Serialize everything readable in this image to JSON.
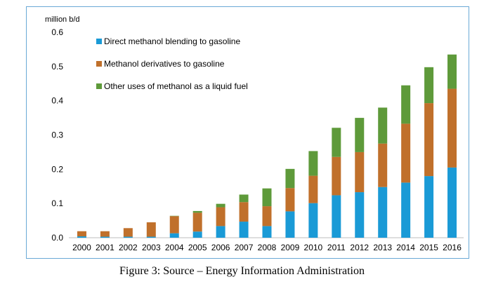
{
  "caption": "Figure 3: Source – Energy Information Administration",
  "chart_data": {
    "type": "bar",
    "stacked": true,
    "unit_label": "million b/d",
    "categories": [
      "2000",
      "2001",
      "2002",
      "2003",
      "2004",
      "2005",
      "2006",
      "2007",
      "2008",
      "2009",
      "2010",
      "2011",
      "2012",
      "2013",
      "2014",
      "2015",
      "2016"
    ],
    "ylim": [
      0,
      0.6
    ],
    "yticks": [
      "0.0",
      "0.1",
      "0.2",
      "0.3",
      "0.4",
      "0.5",
      "0.6"
    ],
    "grid": false,
    "legend_position": "top-left",
    "series": [
      {
        "name": "Direct methanol blending to gasoline",
        "color": "#1a9ad6",
        "values": [
          0.004,
          0.003,
          0.003,
          0.003,
          0.013,
          0.018,
          0.034,
          0.047,
          0.034,
          0.077,
          0.101,
          0.124,
          0.133,
          0.148,
          0.161,
          0.18,
          0.205
        ]
      },
      {
        "name": "Methanol derivatives to gasoline",
        "color": "#c0702b",
        "values": [
          0.015,
          0.016,
          0.025,
          0.042,
          0.05,
          0.055,
          0.055,
          0.057,
          0.058,
          0.068,
          0.08,
          0.112,
          0.117,
          0.127,
          0.172,
          0.213,
          0.23
        ]
      },
      {
        "name": "Other uses of methanol as a liquid fuel",
        "color": "#5e9a3a",
        "values": [
          0.0,
          0.0,
          0.0,
          0.0,
          0.001,
          0.005,
          0.01,
          0.022,
          0.052,
          0.056,
          0.072,
          0.085,
          0.1,
          0.105,
          0.112,
          0.105,
          0.1
        ]
      }
    ]
  }
}
